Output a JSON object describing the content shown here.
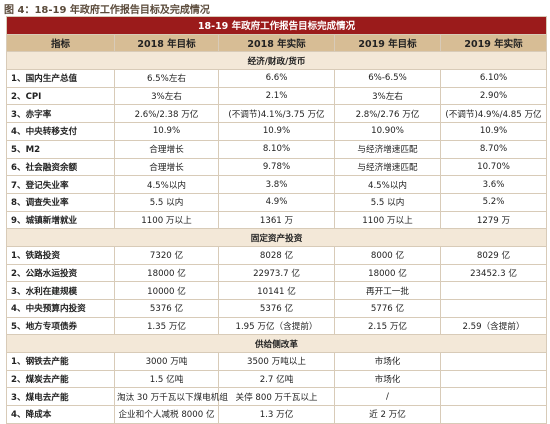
{
  "caption": "图 4：18-19 年政府工作报告目标及完成情况",
  "table": {
    "title": "18-19 年政府工作报告目标完成情况",
    "header": [
      "指标",
      "2018 年目标",
      "2018 年实际",
      "2019 年目标",
      "2019 年实际"
    ],
    "sections": [
      {
        "title": "经济/财政/货币",
        "rows": [
          [
            "1、国内生产总值",
            "6.5%左右",
            "6.6%",
            "6%-6.5%",
            "6.10%"
          ],
          [
            "2、CPI",
            "3%左右",
            "2.1%",
            "3%左右",
            "2.90%"
          ],
          [
            "3、赤字率",
            "2.6%/2.38 万亿",
            "(不调节)4.1%/3.75 万亿",
            "2.8%/2.76 万亿",
            "(不调节)4.9%/4.85 万亿"
          ],
          [
            "4、中央转移支付",
            "10.9%",
            "10.9%",
            "10.90%",
            "10.9%"
          ],
          [
            "5、M2",
            "合理增长",
            "8.10%",
            "与经济增速匹配",
            "8.70%"
          ],
          [
            "6、社会融资余额",
            "合理增长",
            "9.78%",
            "与经济增速匹配",
            "10.70%"
          ],
          [
            "7、登记失业率",
            "4.5%以内",
            "3.8%",
            "4.5%以内",
            "3.6%"
          ],
          [
            "8、调查失业率",
            "5.5 以内",
            "4.9%",
            "5.5 以内",
            "5.2%"
          ],
          [
            "9、城镇新增就业",
            "1100 万以上",
            "1361 万",
            "1100 万以上",
            "1279 万"
          ]
        ]
      },
      {
        "title": "固定资产投资",
        "rows": [
          [
            "1、铁路投资",
            "7320 亿",
            "8028 亿",
            "8000 亿",
            "8029 亿"
          ],
          [
            "2、公路水运投资",
            "18000 亿",
            "22973.7 亿",
            "18000 亿",
            "23452.3 亿"
          ],
          [
            "3、水利在建规模",
            "10000 亿",
            "10141 亿",
            "再开工一批"
          ],
          [
            "4、中央预算内投资",
            "5376 亿",
            "5376 亿",
            "5776 亿"
          ],
          [
            "5、地方专项债券",
            "1.35 万亿",
            "1.95 万亿（含提前）",
            "2.15 万亿",
            "2.59（含提前）"
          ]
        ]
      },
      {
        "title": "供给侧改革",
        "rows": [
          [
            "1、钢铁去产能",
            "3000 万吨",
            "3500 万吨以上",
            "市场化"
          ],
          [
            "2、煤炭去产能",
            "1.5 亿吨",
            "2.7 亿吨",
            "市场化"
          ],
          [
            "3、煤电去产能",
            "淘汰 30 万千瓦以下煤电机组",
            "关停 800 万千瓦以上",
            "/"
          ],
          [
            "4、降成本",
            "企业和个人减税 8000 亿",
            "1.3 万亿",
            "近 2 万亿"
          ]
        ]
      }
    ]
  }
}
